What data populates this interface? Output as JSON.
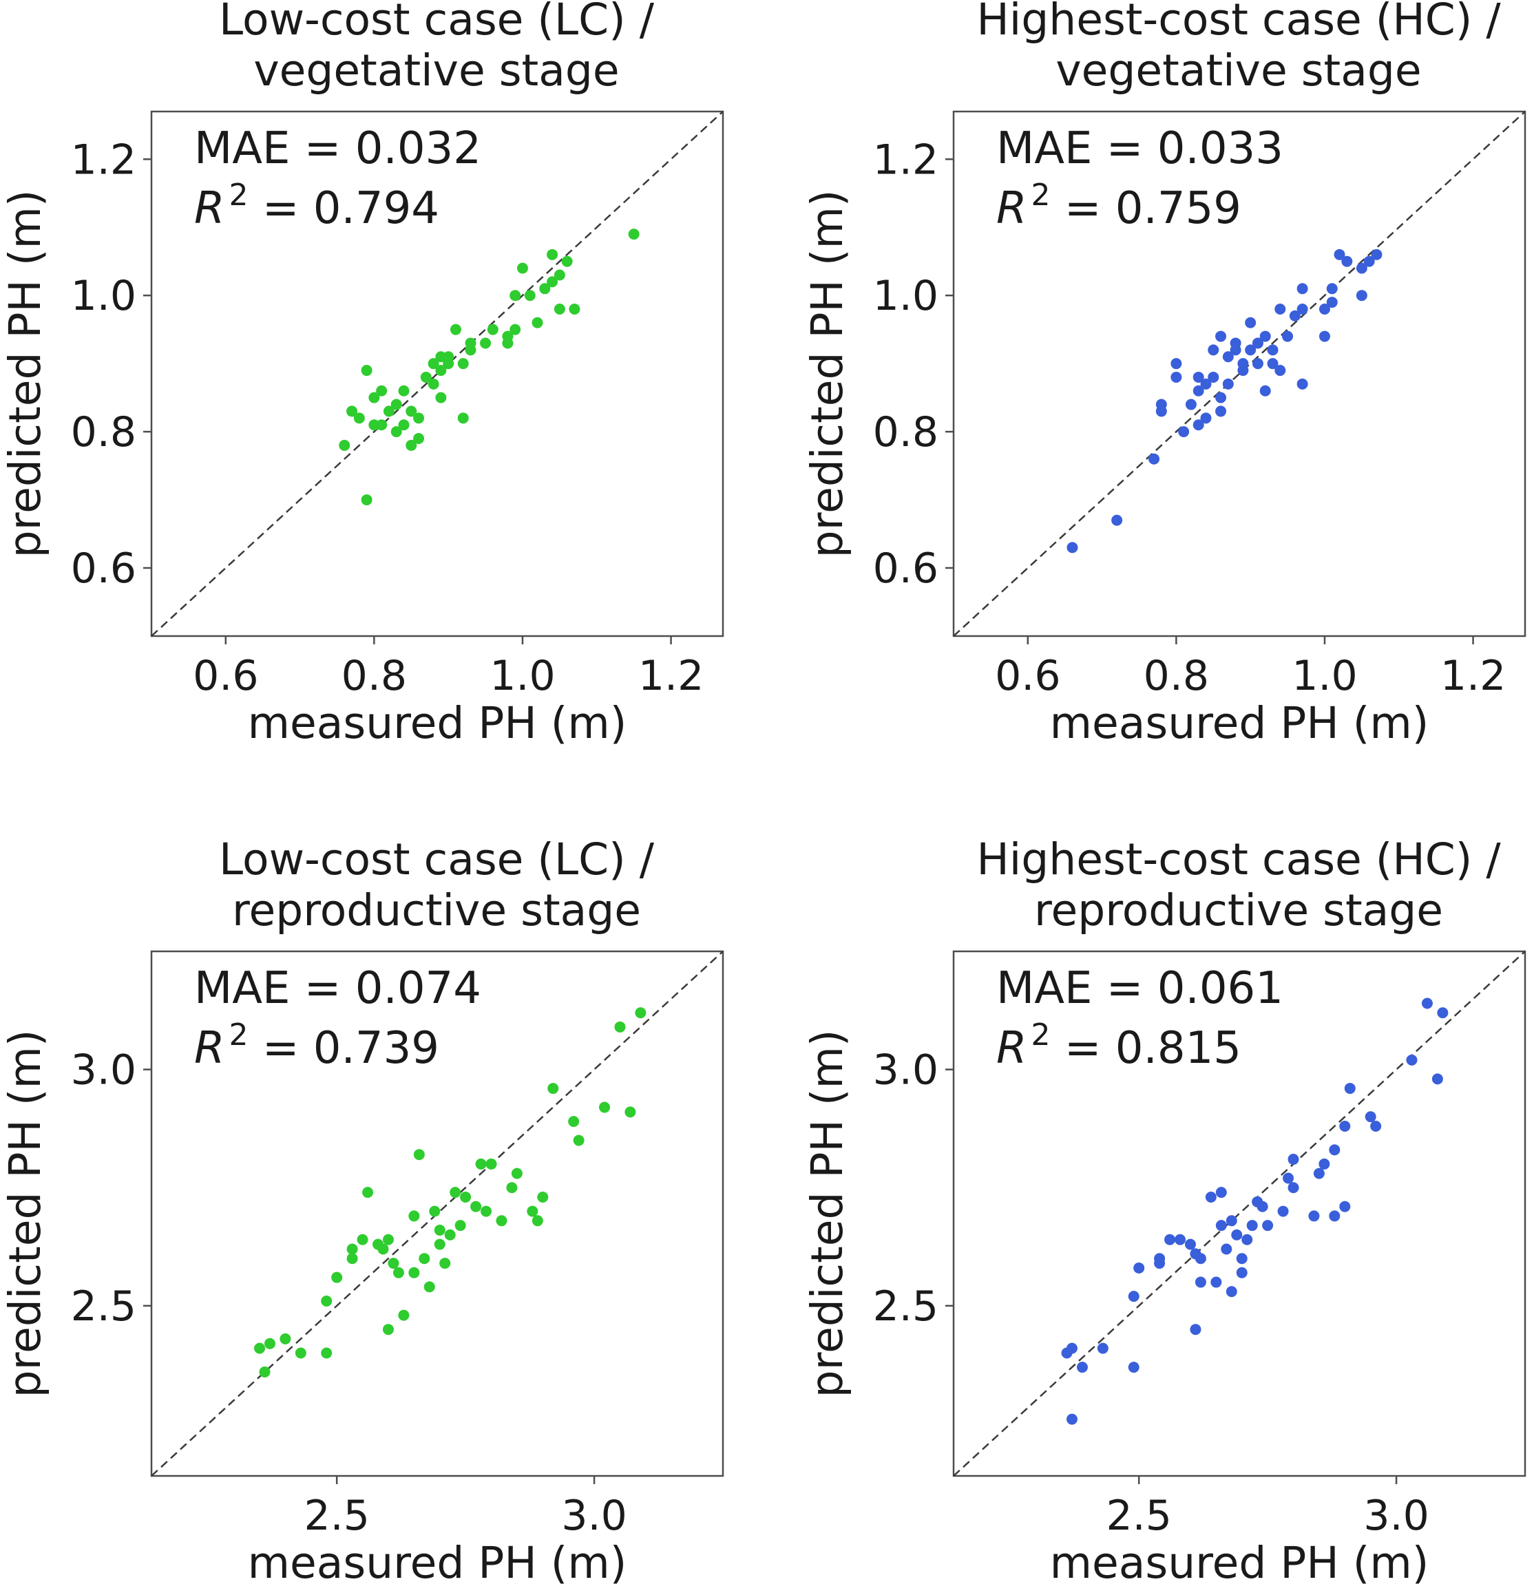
{
  "chart_data": [
    {
      "type": "scatter",
      "title": [
        "Low-cost case (LC) /",
        "vegetative stage"
      ],
      "xlabel": "measured PH (m)",
      "ylabel": "predicted PH (m)",
      "xlim": [
        0.5,
        1.27
      ],
      "ylim": [
        0.5,
        1.27
      ],
      "xticks": [
        "0.6",
        "0.8",
        "1.0",
        "1.2"
      ],
      "yticks": [
        "0.6",
        "0.8",
        "1.0",
        "1.2"
      ],
      "xtick_values": [
        0.6,
        0.8,
        1.0,
        1.2
      ],
      "ytick_values": [
        0.6,
        0.8,
        1.0,
        1.2
      ],
      "mae_text": "MAE = 0.032",
      "r2_label": "R",
      "r2_exp": "2",
      "r2_value": " = 0.794",
      "color": "#2ecc2e",
      "identity_line": true,
      "points": [
        [
          0.76,
          0.78
        ],
        [
          0.77,
          0.83
        ],
        [
          0.78,
          0.82
        ],
        [
          0.79,
          0.89
        ],
        [
          0.79,
          0.7
        ],
        [
          0.8,
          0.85
        ],
        [
          0.8,
          0.81
        ],
        [
          0.81,
          0.86
        ],
        [
          0.81,
          0.81
        ],
        [
          0.82,
          0.83
        ],
        [
          0.83,
          0.84
        ],
        [
          0.83,
          0.8
        ],
        [
          0.84,
          0.81
        ],
        [
          0.84,
          0.86
        ],
        [
          0.85,
          0.78
        ],
        [
          0.85,
          0.83
        ],
        [
          0.86,
          0.79
        ],
        [
          0.86,
          0.82
        ],
        [
          0.87,
          0.88
        ],
        [
          0.88,
          0.87
        ],
        [
          0.88,
          0.9
        ],
        [
          0.89,
          0.85
        ],
        [
          0.89,
          0.89
        ],
        [
          0.89,
          0.91
        ],
        [
          0.9,
          0.9
        ],
        [
          0.9,
          0.91
        ],
        [
          0.91,
          0.95
        ],
        [
          0.92,
          0.9
        ],
        [
          0.92,
          0.82
        ],
        [
          0.93,
          0.93
        ],
        [
          0.93,
          0.92
        ],
        [
          0.98,
          0.93
        ],
        [
          0.98,
          0.94
        ],
        [
          0.99,
          0.95
        ],
        [
          0.99,
          1.0
        ],
        [
          1.0,
          1.04
        ],
        [
          1.01,
          1.0
        ],
        [
          1.02,
          0.96
        ],
        [
          1.03,
          1.01
        ],
        [
          1.04,
          1.02
        ],
        [
          1.04,
          1.06
        ],
        [
          1.05,
          1.03
        ],
        [
          1.05,
          0.98
        ],
        [
          1.06,
          1.05
        ],
        [
          1.07,
          0.98
        ],
        [
          1.15,
          1.09
        ],
        [
          0.95,
          0.93
        ],
        [
          0.96,
          0.95
        ]
      ]
    },
    {
      "type": "scatter",
      "title": [
        "Highest-cost case (HC) /",
        "vegetative stage"
      ],
      "xlabel": "measured PH (m)",
      "ylabel": "predicted PH (m)",
      "xlim": [
        0.5,
        1.27
      ],
      "ylim": [
        0.5,
        1.27
      ],
      "xticks": [
        "0.6",
        "0.8",
        "1.0",
        "1.2"
      ],
      "yticks": [
        "0.6",
        "0.8",
        "1.0",
        "1.2"
      ],
      "xtick_values": [
        0.6,
        0.8,
        1.0,
        1.2
      ],
      "ytick_values": [
        0.6,
        0.8,
        1.0,
        1.2
      ],
      "mae_text": "MAE = 0.033",
      "r2_label": "R",
      "r2_exp": "2",
      "r2_value": " = 0.759",
      "color": "#3a5fdb",
      "identity_line": true,
      "points": [
        [
          0.66,
          0.63
        ],
        [
          0.72,
          0.67
        ],
        [
          0.77,
          0.76
        ],
        [
          0.78,
          0.83
        ],
        [
          0.78,
          0.84
        ],
        [
          0.8,
          0.88
        ],
        [
          0.8,
          0.9
        ],
        [
          0.81,
          0.8
        ],
        [
          0.82,
          0.84
        ],
        [
          0.83,
          0.81
        ],
        [
          0.83,
          0.86
        ],
        [
          0.83,
          0.88
        ],
        [
          0.84,
          0.82
        ],
        [
          0.84,
          0.87
        ],
        [
          0.85,
          0.88
        ],
        [
          0.85,
          0.92
        ],
        [
          0.86,
          0.83
        ],
        [
          0.86,
          0.85
        ],
        [
          0.86,
          0.94
        ],
        [
          0.87,
          0.87
        ],
        [
          0.87,
          0.91
        ],
        [
          0.88,
          0.92
        ],
        [
          0.88,
          0.93
        ],
        [
          0.89,
          0.9
        ],
        [
          0.89,
          0.89
        ],
        [
          0.9,
          0.96
        ],
        [
          0.9,
          0.92
        ],
        [
          0.91,
          0.9
        ],
        [
          0.91,
          0.93
        ],
        [
          0.92,
          0.94
        ],
        [
          0.92,
          0.86
        ],
        [
          0.93,
          0.9
        ],
        [
          0.93,
          0.92
        ],
        [
          0.94,
          0.89
        ],
        [
          0.94,
          0.98
        ],
        [
          0.95,
          0.94
        ],
        [
          0.96,
          0.97
        ],
        [
          0.97,
          0.87
        ],
        [
          0.97,
          1.01
        ],
        [
          0.97,
          0.98
        ],
        [
          1.0,
          0.94
        ],
        [
          1.0,
          0.98
        ],
        [
          1.01,
          1.01
        ],
        [
          1.01,
          0.99
        ],
        [
          1.02,
          1.06
        ],
        [
          1.03,
          1.05
        ],
        [
          1.05,
          1.0
        ],
        [
          1.05,
          1.04
        ],
        [
          1.06,
          1.05
        ],
        [
          1.07,
          1.06
        ]
      ]
    },
    {
      "type": "scatter",
      "title": [
        "Low-cost case (LC) /",
        "reproductive stage"
      ],
      "xlabel": "measured PH (m)",
      "ylabel": "predicted PH (m)",
      "xlim": [
        2.14,
        3.25
      ],
      "ylim": [
        2.14,
        3.25
      ],
      "xticks": [
        "2.5",
        "3.0"
      ],
      "yticks": [
        "2.5",
        "3.0"
      ],
      "xtick_values": [
        2.5,
        3.0
      ],
      "ytick_values": [
        2.5,
        3.0
      ],
      "mae_text": "MAE = 0.074",
      "r2_label": "R",
      "r2_exp": "2",
      "r2_value": " = 0.739",
      "color": "#2ecc2e",
      "identity_line": true,
      "points": [
        [
          2.35,
          2.41
        ],
        [
          2.36,
          2.36
        ],
        [
          2.37,
          2.42
        ],
        [
          2.4,
          2.43
        ],
        [
          2.43,
          2.4
        ],
        [
          2.48,
          2.4
        ],
        [
          2.48,
          2.51
        ],
        [
          2.5,
          2.56
        ],
        [
          2.53,
          2.6
        ],
        [
          2.53,
          2.62
        ],
        [
          2.55,
          2.64
        ],
        [
          2.56,
          2.74
        ],
        [
          2.58,
          2.63
        ],
        [
          2.59,
          2.62
        ],
        [
          2.6,
          2.64
        ],
        [
          2.6,
          2.45
        ],
        [
          2.61,
          2.59
        ],
        [
          2.62,
          2.57
        ],
        [
          2.63,
          2.48
        ],
        [
          2.65,
          2.57
        ],
        [
          2.65,
          2.69
        ],
        [
          2.66,
          2.82
        ],
        [
          2.67,
          2.6
        ],
        [
          2.68,
          2.54
        ],
        [
          2.69,
          2.7
        ],
        [
          2.7,
          2.63
        ],
        [
          2.7,
          2.66
        ],
        [
          2.71,
          2.59
        ],
        [
          2.72,
          2.65
        ],
        [
          2.73,
          2.74
        ],
        [
          2.74,
          2.67
        ],
        [
          2.75,
          2.73
        ],
        [
          2.77,
          2.71
        ],
        [
          2.78,
          2.8
        ],
        [
          2.79,
          2.7
        ],
        [
          2.8,
          2.8
        ],
        [
          2.82,
          2.68
        ],
        [
          2.84,
          2.75
        ],
        [
          2.85,
          2.78
        ],
        [
          2.88,
          2.7
        ],
        [
          2.89,
          2.68
        ],
        [
          2.9,
          2.73
        ],
        [
          2.92,
          2.96
        ],
        [
          2.96,
          2.89
        ],
        [
          2.97,
          2.85
        ],
        [
          3.02,
          2.92
        ],
        [
          3.05,
          3.09
        ],
        [
          3.07,
          2.91
        ],
        [
          3.09,
          3.12
        ]
      ]
    },
    {
      "type": "scatter",
      "title": [
        "Highest-cost case (HC) /",
        "reproductive stage"
      ],
      "xlabel": "measured PH (m)",
      "ylabel": "predicted PH (m)",
      "xlim": [
        2.14,
        3.25
      ],
      "ylim": [
        2.14,
        3.25
      ],
      "xticks": [
        "2.5",
        "3.0"
      ],
      "yticks": [
        "2.5",
        "3.0"
      ],
      "xtick_values": [
        2.5,
        3.0
      ],
      "ytick_values": [
        2.5,
        3.0
      ],
      "mae_text": "MAE = 0.061",
      "r2_label": "R",
      "r2_exp": "2",
      "r2_value": " = 0.815",
      "color": "#3a5fdb",
      "identity_line": true,
      "points": [
        [
          2.36,
          2.4
        ],
        [
          2.37,
          2.41
        ],
        [
          2.37,
          2.26
        ],
        [
          2.39,
          2.37
        ],
        [
          2.43,
          2.41
        ],
        [
          2.49,
          2.37
        ],
        [
          2.49,
          2.52
        ],
        [
          2.5,
          2.58
        ],
        [
          2.54,
          2.59
        ],
        [
          2.54,
          2.6
        ],
        [
          2.56,
          2.64
        ],
        [
          2.58,
          2.64
        ],
        [
          2.6,
          2.63
        ],
        [
          2.61,
          2.45
        ],
        [
          2.61,
          2.61
        ],
        [
          2.62,
          2.55
        ],
        [
          2.62,
          2.6
        ],
        [
          2.64,
          2.73
        ],
        [
          2.65,
          2.55
        ],
        [
          2.66,
          2.67
        ],
        [
          2.66,
          2.74
        ],
        [
          2.67,
          2.62
        ],
        [
          2.68,
          2.53
        ],
        [
          2.68,
          2.68
        ],
        [
          2.69,
          2.65
        ],
        [
          2.7,
          2.57
        ],
        [
          2.7,
          2.6
        ],
        [
          2.71,
          2.64
        ],
        [
          2.72,
          2.67
        ],
        [
          2.73,
          2.72
        ],
        [
          2.74,
          2.71
        ],
        [
          2.75,
          2.67
        ],
        [
          2.78,
          2.7
        ],
        [
          2.79,
          2.77
        ],
        [
          2.8,
          2.75
        ],
        [
          2.8,
          2.81
        ],
        [
          2.84,
          2.69
        ],
        [
          2.85,
          2.78
        ],
        [
          2.86,
          2.8
        ],
        [
          2.88,
          2.69
        ],
        [
          2.88,
          2.83
        ],
        [
          2.9,
          2.88
        ],
        [
          2.9,
          2.71
        ],
        [
          2.91,
          2.96
        ],
        [
          2.95,
          2.9
        ],
        [
          2.96,
          2.88
        ],
        [
          3.03,
          3.02
        ],
        [
          3.06,
          3.14
        ],
        [
          3.08,
          2.98
        ],
        [
          3.09,
          3.12
        ]
      ]
    }
  ]
}
